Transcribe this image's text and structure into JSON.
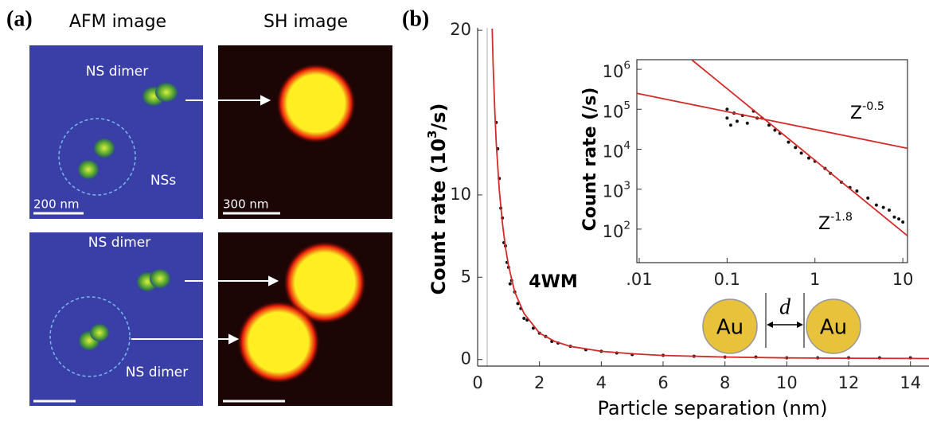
{
  "panel_a": {
    "label": "(a)",
    "col_titles": [
      "AFM image",
      "SH image"
    ],
    "top": {
      "ns_dimer": "NS dimer",
      "nss": "NSs",
      "afm_scale": "200 nm",
      "sh_scale": "300 nm"
    },
    "bottom": {
      "ns_dimer_1": "NS dimer",
      "ns_dimer_2": "NS dimer"
    }
  },
  "chart_data": [
    {
      "type": "scatter",
      "panel_label": "(b)",
      "x_label": "Particle separation (nm)",
      "y_label_parts": [
        "Count rate (10",
        "3",
        "/s)"
      ],
      "annotation": "4WM",
      "xlim": [
        0,
        14.6
      ],
      "ylim": [
        -0.4,
        20.15
      ],
      "xticks": [
        0,
        2,
        4,
        6,
        8,
        10,
        12,
        14
      ],
      "yticks": [
        0,
        5,
        10,
        20
      ],
      "series": [
        {
          "mode": "markers",
          "color": "#111111",
          "x": [
            0.6,
            0.65,
            0.7,
            0.75,
            0.8,
            0.85,
            0.9,
            0.95,
            1.0,
            1.05,
            1.1,
            1.2,
            1.3,
            1.4,
            1.5,
            1.6,
            1.8,
            2.0,
            2.2,
            2.4,
            2.6,
            3.0,
            3.5,
            4.0,
            4.5,
            5.0,
            6.0,
            7.0,
            8.0,
            9.0,
            10.0,
            11.0,
            12.0,
            13.0,
            14.0
          ],
          "values": [
            14.4,
            12.8,
            11.0,
            9.2,
            8.6,
            7.1,
            6.9,
            5.9,
            5.6,
            4.6,
            4.8,
            4.1,
            3.4,
            3.1,
            2.5,
            2.4,
            1.9,
            1.6,
            1.4,
            1.1,
            1.0,
            0.8,
            0.6,
            0.5,
            0.4,
            0.3,
            0.25,
            0.2,
            0.15,
            0.15,
            0.1,
            0.1,
            0.1,
            0.1,
            0.1
          ]
        },
        {
          "mode": "line",
          "color": "#d42a2a",
          "x": [
            0.47,
            0.5,
            0.55,
            0.6,
            0.7,
            0.8,
            0.9,
            1.0,
            1.2,
            1.5,
            2.0,
            2.5,
            3.0,
            4.0,
            5.0,
            6.0,
            8.0,
            10.0,
            12.0,
            14.6
          ],
          "values": [
            20.1,
            18.0,
            15.3,
            13.2,
            10.3,
            8.3,
            6.8,
            5.7,
            4.1,
            2.8,
            1.6,
            1.1,
            0.8,
            0.5,
            0.35,
            0.25,
            0.15,
            0.1,
            0.08,
            0.06
          ]
        }
      ]
    },
    {
      "type": "scatter",
      "log_x": true,
      "log_y": true,
      "y_label": "Count rate (/s)",
      "annotations": [
        {
          "text": "Z",
          "sup": "-0.5"
        },
        {
          "text": "Z",
          "sup": "-1.8"
        }
      ],
      "xlim": [
        0.0094,
        11.3
      ],
      "ylim": [
        14.5,
        1740000
      ],
      "xticks": [
        {
          "value": 0.01,
          "label": ".01"
        },
        0.1,
        1,
        10
      ],
      "yticks": [
        {
          "value": 100,
          "label": "10",
          "sup": "2"
        },
        {
          "value": 1000,
          "label": "10",
          "sup": "3"
        },
        {
          "value": 10000,
          "label": "10",
          "sup": "4"
        },
        {
          "value": 100000,
          "label": "10",
          "sup": "5"
        },
        {
          "value": 1000000,
          "label": "10",
          "sup": "6"
        }
      ],
      "series": [
        {
          "mode": "markers",
          "color": "#111111",
          "x": [
            0.1,
            0.1,
            0.11,
            0.12,
            0.13,
            0.15,
            0.17,
            0.2,
            0.22,
            0.25,
            0.3,
            0.35,
            0.4,
            0.5,
            0.6,
            0.7,
            0.85,
            1.0,
            1.3,
            1.5,
            2.0,
            2.5,
            3.0,
            4.0,
            5.0,
            6.0,
            7.0,
            8.0,
            9.0,
            10.0
          ],
          "values": [
            100000,
            60000,
            40000,
            80000,
            50000,
            70000,
            45000,
            90000,
            60000,
            60000,
            40000,
            30000,
            25000,
            15000,
            11000,
            8000,
            6000,
            5000,
            3300,
            2500,
            1500,
            1100,
            900,
            600,
            400,
            350,
            300,
            200,
            180,
            150
          ]
        },
        {
          "mode": "line",
          "color": "#d42a2a",
          "x": [
            0.0094,
            11.3
          ],
          "values": [
            250000,
            10500
          ]
        },
        {
          "mode": "line",
          "color": "#d42a2a",
          "x": [
            0.04,
            11.3
          ],
          "values": [
            1700000,
            68
          ]
        }
      ]
    }
  ],
  "diagram": {
    "left": "Au",
    "gap": "d",
    "right": "Au"
  }
}
